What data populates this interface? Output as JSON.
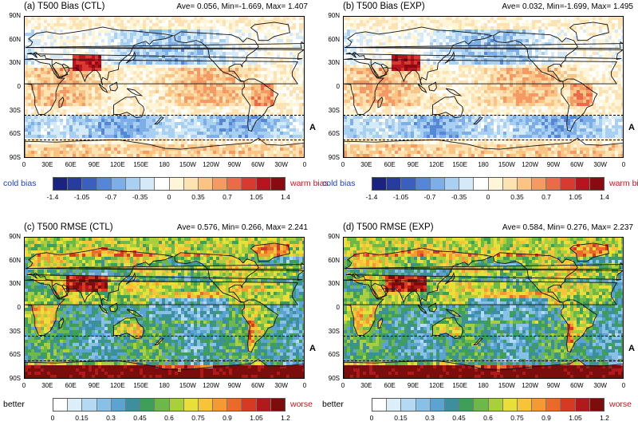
{
  "panels": [
    {
      "title": "(a) T500 Bias (CTL)",
      "stats": "Ave= 0.056, Min=-1.669, Max= 1.407",
      "type": "bias",
      "region_label": "A"
    },
    {
      "title": "(b) T500 Bias (EXP)",
      "stats": "Ave= 0.032, Min=-1.699, Max= 1.495",
      "type": "bias",
      "region_label": "A"
    },
    {
      "title": "(c) T500 RMSE (CTL)",
      "stats": "Ave= 0.576, Min= 0.266, Max= 2.241",
      "type": "rmse",
      "region_label": "A"
    },
    {
      "title": "(d) T500 RMSE (EXP)",
      "stats": "Ave= 0.584, Min= 0.276, Max= 2.237",
      "type": "rmse",
      "region_label": "A"
    }
  ],
  "latitude_labels": [
    "90N",
    "60N",
    "30N",
    "0",
    "30S",
    "60S",
    "90S"
  ],
  "longitude_labels": [
    "0",
    "30E",
    "60E",
    "90E",
    "120E",
    "150E",
    "180",
    "150W",
    "120W",
    "90W",
    "60W",
    "30W",
    "0"
  ],
  "bias_colorbar": {
    "left_label": "cold bias",
    "right_label": "warm bias",
    "left_color": "#1f3fa8",
    "right_color": "#c8141e",
    "ticks": [
      "-1.4",
      "-1.05",
      "-0.7",
      "-0.35",
      "0",
      "0.35",
      "0.7",
      "1.05",
      "1.4"
    ],
    "colors": [
      "#1a237e",
      "#283b9e",
      "#3a5fc0",
      "#5686d6",
      "#7eaee6",
      "#a9d0f1",
      "#d5eaf8",
      "#ffffff",
      "#fff5d9",
      "#fde3b3",
      "#fbc487",
      "#f59a64",
      "#ea6a4a",
      "#d83a31",
      "#b8141f",
      "#8a0a14"
    ]
  },
  "rmse_colorbar": {
    "left_label": "better",
    "right_label": "worse",
    "left_color": "#000000",
    "right_color": "#c8141e",
    "ticks": [
      "0",
      "0.15",
      "0.3",
      "0.45",
      "0.6",
      "0.75",
      "0.9",
      "1.05",
      "1.2"
    ],
    "colors": [
      "#ffffff",
      "#dceefa",
      "#b4daf3",
      "#88c1e7",
      "#5aa3d2",
      "#3c8f9c",
      "#3f9e57",
      "#6cb84a",
      "#a9cf3f",
      "#e8df3a",
      "#f6c33b",
      "#f49a35",
      "#ea6a2c",
      "#d63a23",
      "#b01a1a",
      "#7c0d0d"
    ]
  }
}
